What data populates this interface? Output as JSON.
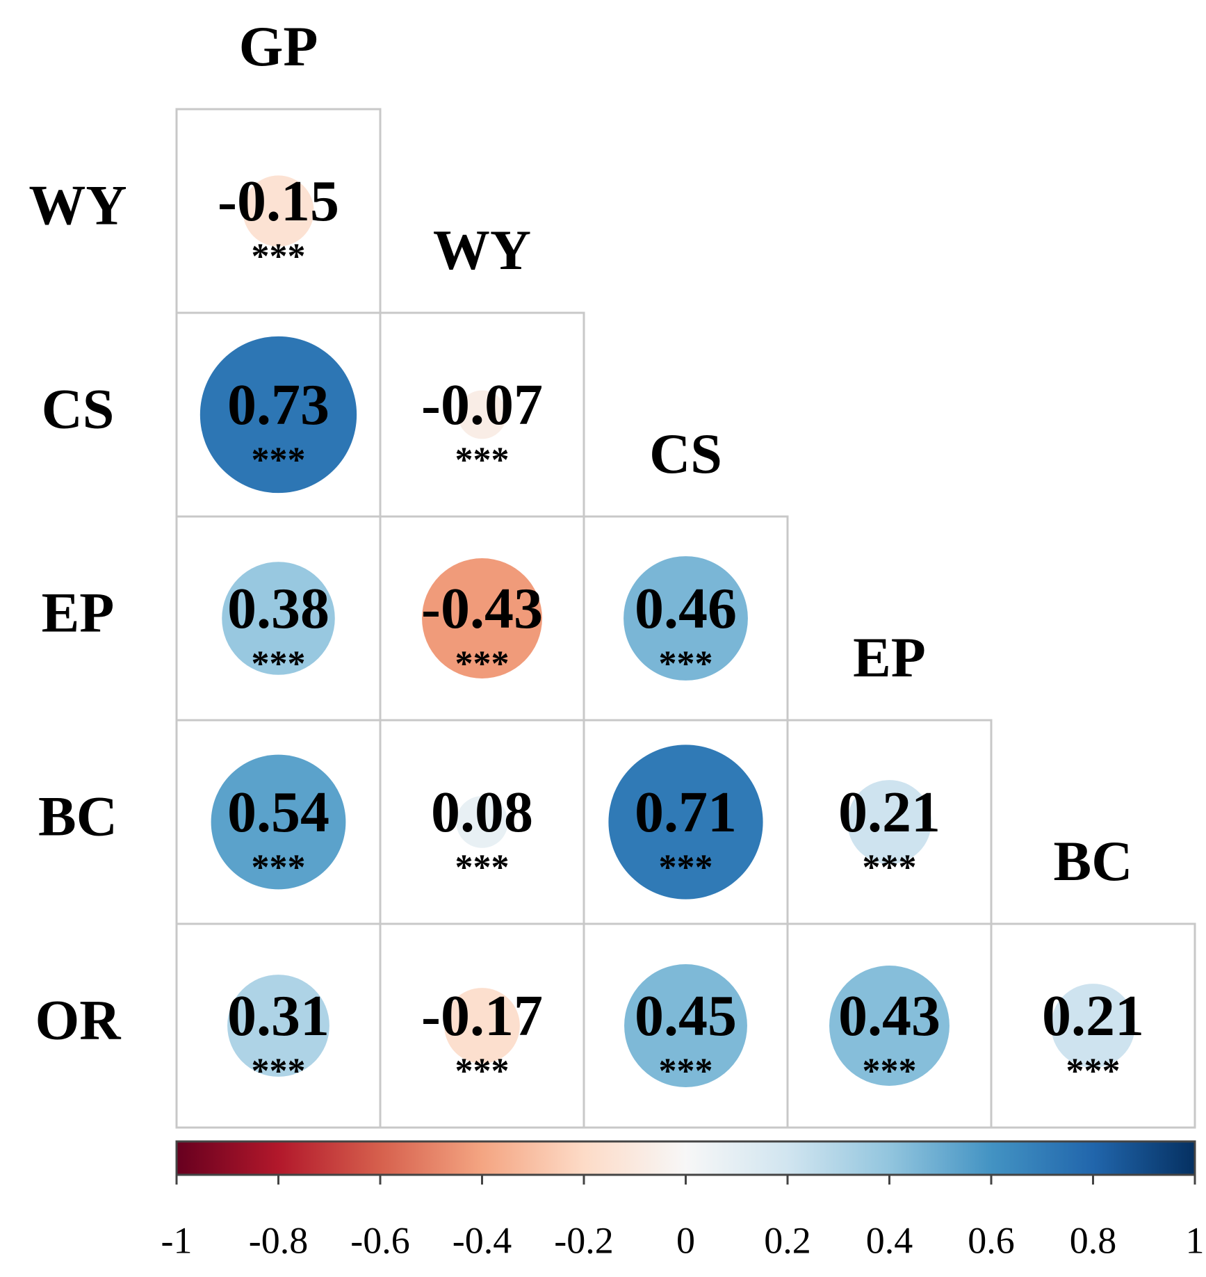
{
  "chart_data": {
    "type": "correlation",
    "columns": [
      "GP",
      "WY",
      "CS",
      "EP",
      "BC"
    ],
    "rows": [
      "WY",
      "CS",
      "EP",
      "BC",
      "OR"
    ],
    "values": [
      [
        -0.15
      ],
      [
        0.73,
        -0.07
      ],
      [
        0.38,
        -0.43,
        0.46
      ],
      [
        0.54,
        0.08,
        0.71,
        0.21
      ],
      [
        0.31,
        -0.17,
        0.45,
        0.43,
        0.21
      ]
    ],
    "significance": [
      [
        "***"
      ],
      [
        "***",
        "***"
      ],
      [
        "***",
        "***",
        "***"
      ],
      [
        "***",
        "***",
        "***",
        "***"
      ],
      [
        "***",
        "***",
        "***",
        "***",
        "***"
      ]
    ],
    "colormap": [
      "#67001f",
      "#b2182b",
      "#d6604d",
      "#f4a582",
      "#fddbc7",
      "#f7f7f7",
      "#d1e5f0",
      "#92c5de",
      "#4393c3",
      "#2166ac",
      "#053061"
    ],
    "clim": [
      -1,
      1
    ],
    "cticks": [
      -1,
      -0.8,
      -0.6,
      -0.4,
      -0.2,
      0,
      0.2,
      0.4,
      0.6,
      0.8,
      1
    ]
  }
}
